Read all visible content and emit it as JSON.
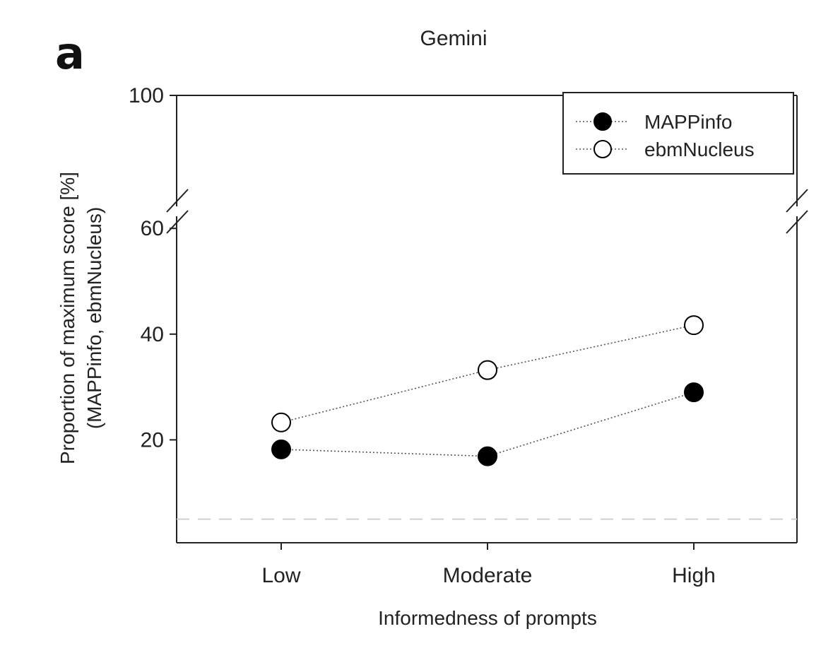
{
  "panel_label": "a",
  "chart_data": {
    "type": "line",
    "title": "Gemini",
    "xlabel": "Informedness of prompts",
    "ylabel_lines": [
      "Proportion of maximum score [%]",
      "(MAPPinfo, ebmNucleus)"
    ],
    "categories": [
      "Low",
      "Moderate",
      "High"
    ],
    "y_ticks": [
      20,
      40,
      60,
      100
    ],
    "y_tick_labels": [
      "20",
      "40",
      "60",
      "100"
    ],
    "axis_break": {
      "from": 60,
      "to": 100
    },
    "reference_line": 5,
    "legend_position": "top-right",
    "grid": false,
    "series": [
      {
        "name": "MAPPinfo",
        "marker": "filled-circle",
        "color": "#000000",
        "values": [
          18.2,
          16.9,
          29.0
        ]
      },
      {
        "name": "ebmNucleus",
        "marker": "open-circle",
        "color": "#000000",
        "values": [
          23.3,
          33.2,
          41.7
        ]
      }
    ]
  }
}
